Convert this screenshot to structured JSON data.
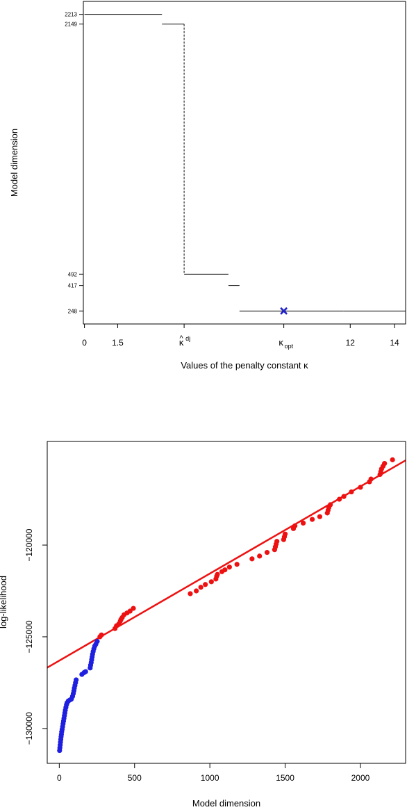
{
  "chart_data": [
    {
      "type": "line",
      "subtype": "step",
      "xlabel": "Values of the penalty constant κ",
      "ylabel": "Model dimension",
      "x_ticks": [
        {
          "value": 0,
          "label": "0"
        },
        {
          "value": 1.5,
          "label": "1.5"
        },
        {
          "value": 12,
          "label": "12"
        },
        {
          "value": 14,
          "label": "14"
        }
      ],
      "special_ticks": [
        {
          "id": "dj",
          "value": 4.5,
          "base": "κ",
          "hat": "^",
          "superscript": "dj"
        },
        {
          "id": "opt",
          "value": 9.0,
          "base": "κ",
          "subscript": "opt"
        }
      ],
      "y_ticks": [
        {
          "value": 2213,
          "label": "2213"
        },
        {
          "value": 2149,
          "label": "2149"
        },
        {
          "value": 492,
          "label": "492"
        },
        {
          "value": 417,
          "label": "417"
        },
        {
          "value": 248,
          "label": "248"
        }
      ],
      "xlim": [
        -0.05,
        14.5
      ],
      "ylim": [
        162,
        2299
      ],
      "steps": [
        {
          "x_start": 0,
          "x_end": 3.5,
          "y": 2213
        },
        {
          "x_start": 3.5,
          "x_end": 4.5,
          "y": 2149
        },
        {
          "x_start": 4.5,
          "x_end": 6.5,
          "y": 492
        },
        {
          "x_start": 6.5,
          "x_end": 7.0,
          "y": 417
        },
        {
          "x_start": 7.0,
          "x_end": 11.7,
          "y": 248
        },
        {
          "x_start": 11.7,
          "x_end": 14.5,
          "y": 248
        }
      ],
      "jump": {
        "x": 4.5,
        "y_from": 2149,
        "y_to": 492,
        "style": "dashed"
      },
      "marker": {
        "x": 9.0,
        "y": 248,
        "shape": "x",
        "color": "#2222cc"
      },
      "grid": false,
      "legend": "none"
    },
    {
      "type": "scatter",
      "xlabel": "Model dimension",
      "ylabel": "log-likelihood",
      "xlim": [
        -80,
        2300
      ],
      "ylim": [
        -131900,
        -114350
      ],
      "x_ticks": [
        0,
        500,
        1000,
        1500,
        2000
      ],
      "y_ticks": [
        -130000,
        -125000,
        -120000
      ],
      "y_tick_labels": [
        "−130000",
        "−125000",
        "−120000"
      ],
      "colors": {
        "blue": "#1f1fe0",
        "red": "#ee1111",
        "line": "#ee1111"
      },
      "series": [
        {
          "color": "blue",
          "points": [
            [
              2,
              -131200
            ],
            [
              4,
              -131050
            ],
            [
              6,
              -130900
            ],
            [
              8,
              -130750
            ],
            [
              10,
              -130600
            ],
            [
              12,
              -130450
            ],
            [
              14,
              -130320
            ],
            [
              16,
              -130180
            ],
            [
              19,
              -130050
            ],
            [
              22,
              -129900
            ],
            [
              25,
              -129750
            ],
            [
              28,
              -129600
            ],
            [
              31,
              -129450
            ],
            [
              34,
              -129300
            ],
            [
              37,
              -129150
            ],
            [
              40,
              -129000
            ],
            [
              44,
              -128850
            ],
            [
              48,
              -128700
            ],
            [
              52,
              -128600
            ],
            [
              60,
              -128500
            ],
            [
              70,
              -128450
            ],
            [
              80,
              -128400
            ],
            [
              88,
              -128250
            ],
            [
              93,
              -128100
            ],
            [
              97,
              -127950
            ],
            [
              100,
              -127800
            ],
            [
              104,
              -127650
            ],
            [
              108,
              -127500
            ],
            [
              112,
              -127350
            ],
            [
              150,
              -127050
            ],
            [
              165,
              -126950
            ],
            [
              175,
              -126900
            ],
            [
              205,
              -126700
            ],
            [
              208,
              -126550
            ],
            [
              212,
              -126400
            ],
            [
              215,
              -126250
            ],
            [
              218,
              -126100
            ],
            [
              221,
              -125950
            ],
            [
              225,
              -125800
            ],
            [
              230,
              -125650
            ],
            [
              236,
              -125500
            ],
            [
              243,
              -125400
            ],
            [
              252,
              -125250
            ]
          ]
        },
        {
          "color": "red",
          "points": [
            [
              270,
              -125000
            ],
            [
              280,
              -124900
            ],
            [
              370,
              -124550
            ],
            [
              380,
              -124400
            ],
            [
              395,
              -124300
            ],
            [
              405,
              -124150
            ],
            [
              410,
              -124050
            ],
            [
              418,
              -123950
            ],
            [
              430,
              -123800
            ],
            [
              450,
              -123700
            ],
            [
              470,
              -123600
            ],
            [
              492,
              -123450
            ],
            [
              870,
              -122650
            ],
            [
              910,
              -122500
            ],
            [
              940,
              -122300
            ],
            [
              970,
              -122150
            ],
            [
              1010,
              -122000
            ],
            [
              1040,
              -121850
            ],
            [
              1045,
              -121700
            ],
            [
              1050,
              -121600
            ],
            [
              1080,
              -121450
            ],
            [
              1100,
              -121350
            ],
            [
              1130,
              -121200
            ],
            [
              1180,
              -121050
            ],
            [
              1280,
              -120750
            ],
            [
              1330,
              -120600
            ],
            [
              1380,
              -120400
            ],
            [
              1430,
              -120250
            ],
            [
              1435,
              -120100
            ],
            [
              1440,
              -119950
            ],
            [
              1445,
              -119800
            ],
            [
              1490,
              -119700
            ],
            [
              1495,
              -119550
            ],
            [
              1500,
              -119400
            ],
            [
              1555,
              -119100
            ],
            [
              1565,
              -118950
            ],
            [
              1620,
              -118800
            ],
            [
              1680,
              -118600
            ],
            [
              1730,
              -118450
            ],
            [
              1780,
              -118250
            ],
            [
              1785,
              -118100
            ],
            [
              1790,
              -117950
            ],
            [
              1800,
              -117800
            ],
            [
              1860,
              -117500
            ],
            [
              1890,
              -117350
            ],
            [
              1940,
              -117100
            ],
            [
              2000,
              -116850
            ],
            [
              2060,
              -116550
            ],
            [
              2070,
              -116400
            ],
            [
              2130,
              -116150
            ],
            [
              2135,
              -116000
            ],
            [
              2140,
              -115850
            ],
            [
              2150,
              -115700
            ],
            [
              2160,
              -115550
            ],
            [
              2213,
              -115350
            ]
          ]
        }
      ],
      "fit_line": {
        "x1": -80,
        "y1": -126680,
        "x2": 2300,
        "y2": -115380
      },
      "grid": false,
      "legend": "none"
    }
  ]
}
